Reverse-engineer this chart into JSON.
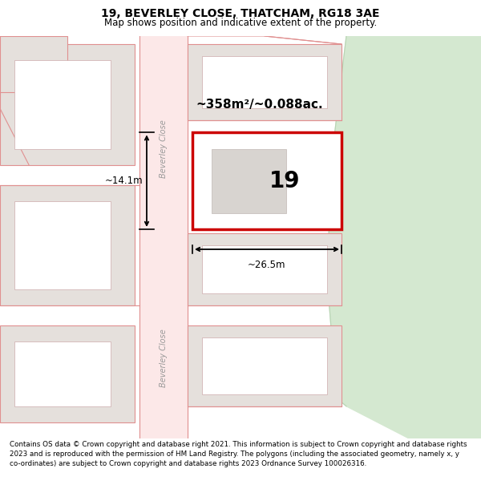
{
  "title_line1": "19, BEVERLEY CLOSE, THATCHAM, RG18 3AE",
  "title_line2": "Map shows position and indicative extent of the property.",
  "footer_text": "Contains OS data © Crown copyright and database right 2021. This information is subject to Crown copyright and database rights 2023 and is reproduced with the permission of HM Land Registry. The polygons (including the associated geometry, namely x, y co-ordinates) are subject to Crown copyright and database rights 2023 Ordnance Survey 100026316.",
  "map_bg": "#f2eeea",
  "road_fill": "#fce8e8",
  "road_border": "#e09090",
  "block_fill": "#e5e0dc",
  "highlight_fill": "#ffffff",
  "highlight_border": "#cc0000",
  "green_fill": "#d4e8d0",
  "green_border": "#b8d4b4",
  "area_text": "~358m²/~0.088ac.",
  "number_text": "19",
  "dim_width": "~26.5m",
  "dim_height": "~14.1m",
  "road_label": "Beverley Close",
  "road_label2": "Beverley Close"
}
